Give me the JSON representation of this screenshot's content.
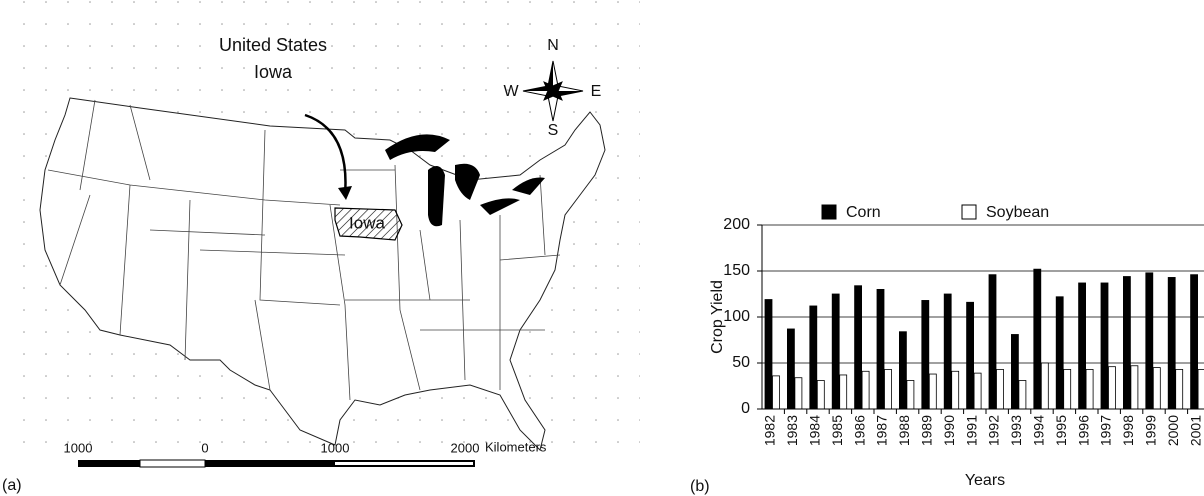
{
  "map": {
    "label": "(a)",
    "title": "United States",
    "subtitle": "Iowa",
    "state_label": "Iowa",
    "compass": {
      "north": "N",
      "south": "S",
      "east": "E",
      "west": "W"
    },
    "scale_bar": {
      "ticks": [
        "1000",
        "0",
        "1000",
        "2000"
      ],
      "unit": "Kilometers"
    }
  },
  "chart_data": {
    "type": "bar",
    "label": "(b)",
    "x_label": "Years",
    "y_label": "Crop Yield",
    "categories": [
      "1982",
      "1983",
      "1984",
      "1985",
      "1986",
      "1987",
      "1988",
      "1989",
      "1990",
      "1991",
      "1992",
      "1993",
      "1994",
      "1995",
      "1996",
      "1997",
      "1998",
      "1999",
      "2000",
      "2001"
    ],
    "series": [
      {
        "name": "Corn",
        "color": "#000000",
        "values": [
          119,
          87,
          112,
          125,
          134,
          130,
          84,
          118,
          125,
          116,
          146,
          81,
          152,
          122,
          137,
          137,
          144,
          148,
          143,
          146
        ]
      },
      {
        "name": "Soybean",
        "color": "#ffffff",
        "values": [
          36,
          34,
          31,
          37,
          41,
          43,
          31,
          38,
          41,
          39,
          43,
          31,
          50,
          43,
          43,
          46,
          47,
          45,
          43,
          43
        ]
      }
    ],
    "ylim": [
      0,
      200
    ],
    "yticks": [
      0,
      50,
      100,
      150,
      200
    ],
    "grid": true
  }
}
